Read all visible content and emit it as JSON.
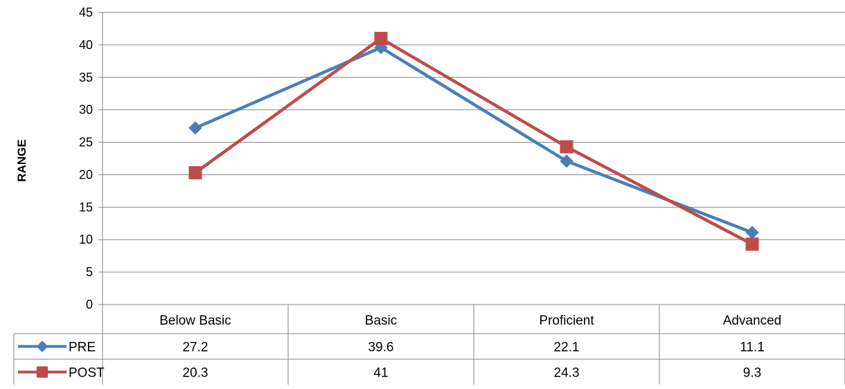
{
  "chart_data": {
    "type": "line",
    "title": "",
    "xlabel": "",
    "ylabel": "RANGE",
    "ylim": [
      0,
      45
    ],
    "ytick_step": 5,
    "grid": true,
    "legend": "data-table",
    "categories": [
      "Below Basic",
      "Basic",
      "Proficient",
      "Advanced"
    ],
    "series": [
      {
        "name": "PRE",
        "values": [
          27.2,
          39.6,
          22.1,
          11.1
        ],
        "color": "#4a7ebb",
        "marker": "diamond"
      },
      {
        "name": "POST",
        "values": [
          20.3,
          41,
          24.3,
          9.3
        ],
        "color": "#be4b48",
        "marker": "square"
      }
    ]
  }
}
